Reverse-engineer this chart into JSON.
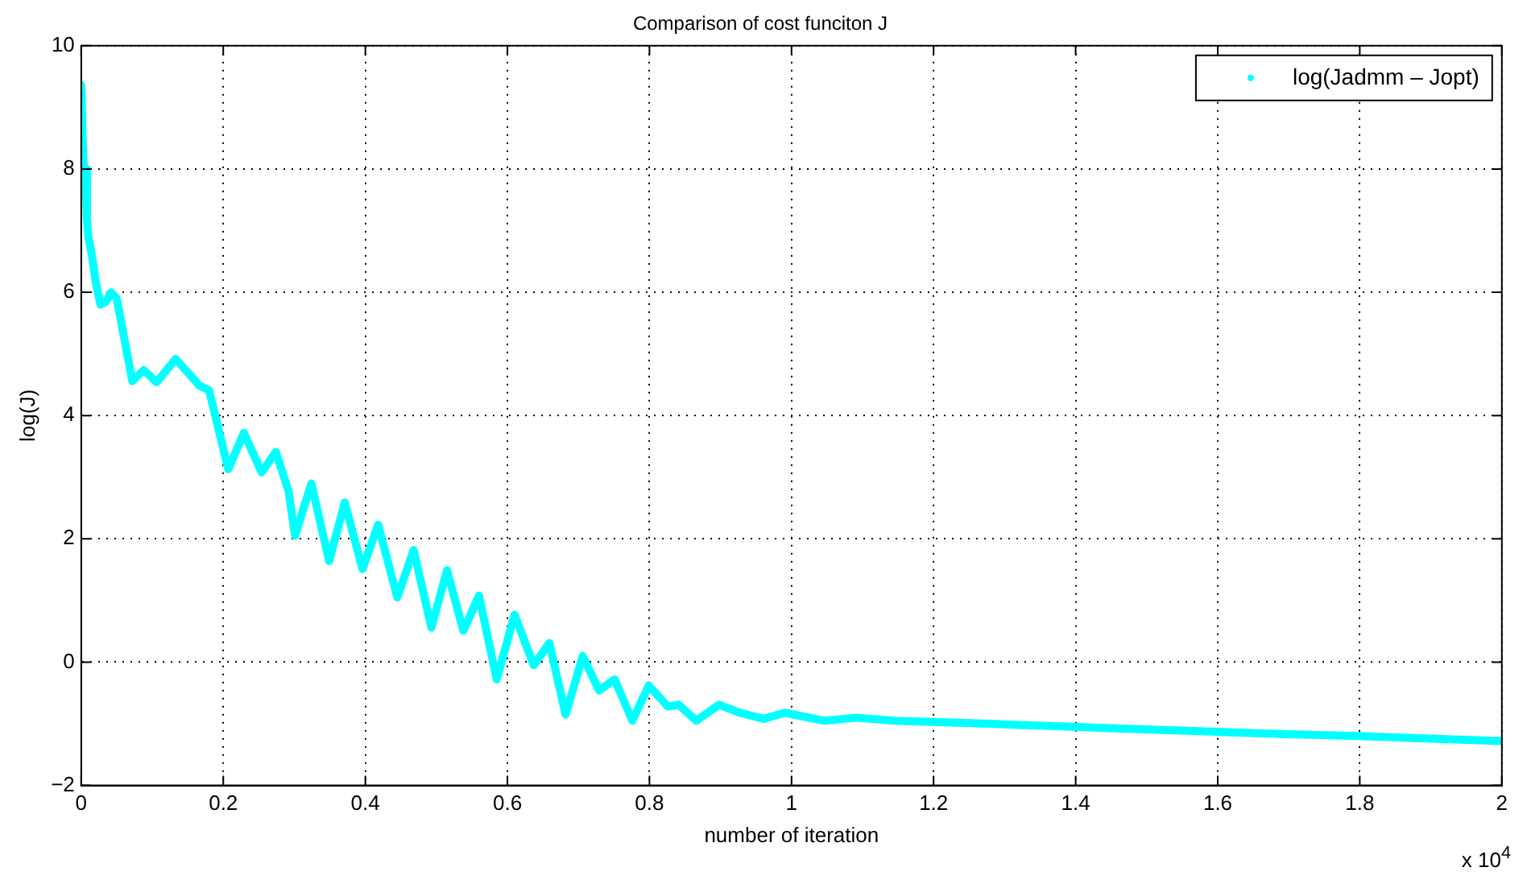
{
  "chart_data": {
    "type": "line",
    "title": "Comparison of cost funciton J",
    "xlabel": "number of iteration",
    "ylabel": "log(J)",
    "annotations": [
      "x 10$^{4}$"
    ],
    "xlim": [
      0,
      2
    ],
    "xticks": [
      0,
      0.2,
      0.4,
      0.6,
      0.8,
      1,
      1.2,
      1.4,
      1.6,
      1.8,
      2
    ],
    "ylim": [
      -2,
      10
    ],
    "yticks": [
      -2,
      0,
      2,
      4,
      6,
      8,
      10
    ],
    "grid": true,
    "legend": "top right",
    "marker": "none",
    "line_style": "solid",
    "series": [
      {
        "name": "log(Jadmm – Jopt)",
        "color": "#00ffff",
        "x": [
          0,
          0.002,
          0.004,
          0.006,
          0.008,
          0.01,
          0.015,
          0.02,
          0.027,
          0.035,
          0.042,
          0.05,
          0.072,
          0.088,
          0.106,
          0.133,
          0.166,
          0.18,
          0.207,
          0.229,
          0.254,
          0.274,
          0.292,
          0.301,
          0.324,
          0.349,
          0.371,
          0.396,
          0.418,
          0.445,
          0.468,
          0.493,
          0.515,
          0.538,
          0.56,
          0.585,
          0.61,
          0.637,
          0.659,
          0.682,
          0.706,
          0.729,
          0.751,
          0.776,
          0.799,
          0.826,
          0.841,
          0.866,
          0.898,
          0.927,
          0.961,
          0.99,
          1.046,
          1.091,
          1.145,
          1.2,
          1.28,
          1.348,
          1.45,
          1.6,
          1.7,
          1.8,
          1.9,
          2
        ],
        "values": [
          9.36,
          8.5,
          7.9,
          8.0,
          7.2,
          6.9,
          6.6,
          6.2,
          5.8,
          5.85,
          6.0,
          5.9,
          4.56,
          4.74,
          4.54,
          4.92,
          4.49,
          4.41,
          3.13,
          3.72,
          3.08,
          3.41,
          2.77,
          2.05,
          2.9,
          1.64,
          2.59,
          1.51,
          2.23,
          1.05,
          1.82,
          0.56,
          1.49,
          0.51,
          1.08,
          -0.28,
          0.77,
          -0.05,
          0.31,
          -0.85,
          0.1,
          -0.46,
          -0.28,
          -0.95,
          -0.38,
          -0.72,
          -0.69,
          -0.95,
          -0.69,
          -0.82,
          -0.92,
          -0.82,
          -0.95,
          -0.9,
          -0.95,
          -0.97,
          -1.0,
          -1.03,
          -1.07,
          -1.13,
          -1.17,
          -1.2,
          -1.24,
          -1.28
        ]
      }
    ]
  }
}
